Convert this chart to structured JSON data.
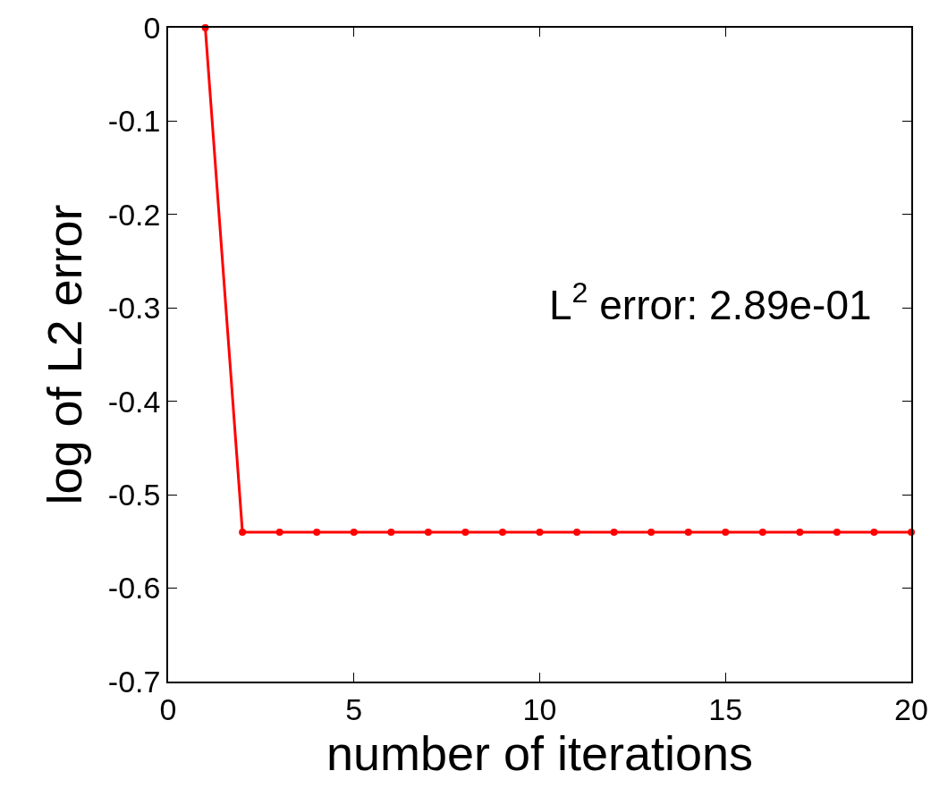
{
  "chart_data": {
    "type": "line",
    "xlabel": "number of iterations",
    "ylabel": "log of L2 error",
    "annotations": [
      "L$^{2}$ error: 2.89e-01"
    ],
    "x": [
      1,
      2,
      3,
      4,
      5,
      6,
      7,
      8,
      9,
      10,
      11,
      12,
      13,
      14,
      15,
      16,
      17,
      18,
      19,
      20
    ],
    "series": [
      {
        "color": "#ff0000",
        "values": [
          0,
          -0.54,
          -0.54,
          -0.54,
          -0.54,
          -0.54,
          -0.54,
          -0.54,
          -0.54,
          -0.54,
          -0.54,
          -0.54,
          -0.54,
          -0.54,
          -0.54,
          -0.54,
          -0.54,
          -0.54,
          -0.54,
          -0.54
        ]
      }
    ],
    "xlim": [
      0,
      20
    ],
    "xticks": [
      0,
      5,
      10,
      15,
      20
    ],
    "ylim": [
      -0.7,
      0
    ],
    "yticks": [
      -0.7,
      -0.6,
      -0.5,
      -0.4,
      -0.3,
      -0.2,
      -0.1,
      0
    ],
    "marker": "circle",
    "line_style": "solid"
  }
}
